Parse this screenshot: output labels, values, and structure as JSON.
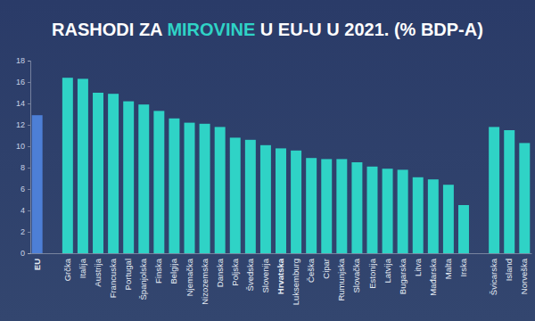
{
  "chart_data": {
    "type": "bar",
    "title": "RASHODI ZA MIROVINE U EU-U U 2021. (% BDP-A)",
    "categories": [
      "EU",
      null,
      "Grčka",
      "Italija",
      "Austrija",
      "Francuska",
      "Portugal",
      "Španjolska",
      "Finska",
      "Belgija",
      "Njemačka",
      "Nizozemska",
      "Danska",
      "Poljska",
      "Švedska",
      "Slovenija",
      "Hrvatska",
      "Luksemburg",
      "Češka",
      "Cipar",
      "Rumunjska",
      "Slovačka",
      "Estonija",
      "Latvija",
      "Bugarska",
      "Litva",
      "Mađarska",
      "Malta",
      "Irska",
      null,
      "Švicarska",
      "Island",
      "Norveška"
    ],
    "values": [
      12.9,
      null,
      16.4,
      16.3,
      15.0,
      14.9,
      14.2,
      13.9,
      13.3,
      12.6,
      12.2,
      12.1,
      11.8,
      10.8,
      10.6,
      10.1,
      9.8,
      9.6,
      8.9,
      8.8,
      8.8,
      8.5,
      8.1,
      7.9,
      7.8,
      7.1,
      6.9,
      6.4,
      4.5,
      null,
      11.8,
      11.5,
      10.3
    ],
    "colors": [
      "#4d7fd6",
      null,
      "#2fd3c6",
      "#2fd3c6",
      "#2fd3c6",
      "#2fd3c6",
      "#2fd3c6",
      "#2fd3c6",
      "#2fd3c6",
      "#2fd3c6",
      "#2fd3c6",
      "#2fd3c6",
      "#2fd3c6",
      "#2fd3c6",
      "#2fd3c6",
      "#2fd3c6",
      "#2fd3c6",
      "#2fd3c6",
      "#2fd3c6",
      "#2fd3c6",
      "#2fd3c6",
      "#2fd3c6",
      "#2fd3c6",
      "#2fd3c6",
      "#2fd3c6",
      "#2fd3c6",
      "#2fd3c6",
      "#2fd3c6",
      "#2fd3c6",
      null,
      "#2fd3c6",
      "#2fd3c6",
      "#2fd3c6"
    ],
    "ylim": [
      0,
      18
    ],
    "yticks": [
      0,
      2,
      4,
      6,
      8,
      10,
      12,
      14,
      16,
      18
    ],
    "grid": false
  }
}
